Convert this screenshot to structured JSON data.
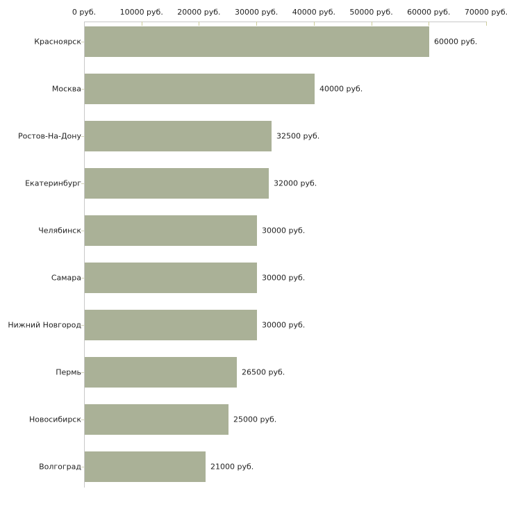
{
  "chart_data": {
    "type": "bar",
    "orientation": "horizontal",
    "title": "",
    "xlabel": "",
    "ylabel": "",
    "xlim": [
      0,
      70000
    ],
    "grid": false,
    "legend": null,
    "x_axis_position": "top",
    "x_ticks": {
      "values": [
        0,
        10000,
        20000,
        30000,
        40000,
        50000,
        60000,
        70000
      ],
      "labels": [
        "0 руб.",
        "10000 руб.",
        "20000 руб.",
        "30000 руб.",
        "40000 руб.",
        "50000 руб.",
        "60000 руб.",
        "70000 руб."
      ]
    },
    "categories": [
      "Красноярск",
      "Москва",
      "Ростов-На-Дону",
      "Екатеринбург",
      "Челябинск",
      "Самара",
      "Нижний Новгород",
      "Пермь",
      "Новосибирск",
      "Волгоград"
    ],
    "values": [
      60000,
      40000,
      32500,
      32000,
      30000,
      30000,
      30000,
      26500,
      25000,
      21000
    ],
    "value_labels": [
      "60000 руб.",
      "40000 руб.",
      "32500 руб.",
      "32000 руб.",
      "30000 руб.",
      "30000 руб.",
      "30000 руб.",
      "26500 руб.",
      "25000 руб.",
      "21000 руб."
    ],
    "colors": {
      "bar": "#aab197",
      "axis_line": "#c8c8c8",
      "x_tick": "#cccc99",
      "y_tick": "#d2d2b4",
      "text": "#222222",
      "background": "#ffffff"
    }
  }
}
